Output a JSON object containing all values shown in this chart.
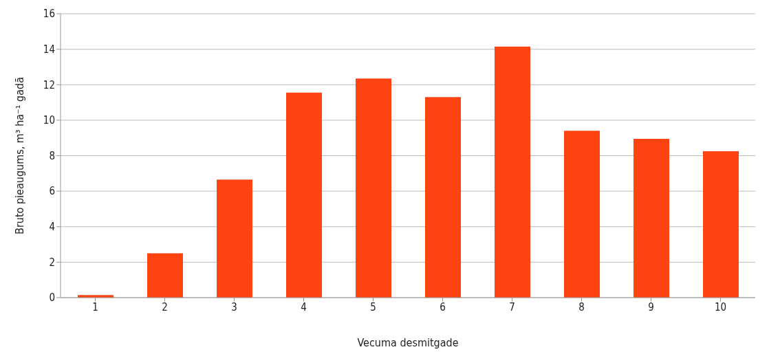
{
  "chart_data": {
    "type": "bar",
    "xlabel": "Vecuma desmitgade",
    "ylabel": "Bruto pieaugums, m³ ha⁻¹ gadā",
    "categories": [
      "1",
      "2",
      "3",
      "4",
      "5",
      "6",
      "7",
      "8",
      "9",
      "10"
    ],
    "values": [
      0.15,
      2.5,
      6.65,
      11.55,
      12.35,
      11.3,
      14.15,
      9.4,
      8.95,
      8.25
    ],
    "color": "#ff4412",
    "ylim": [
      0,
      16
    ],
    "yticks": [
      0,
      2,
      4,
      6,
      8,
      10,
      12,
      14,
      16
    ],
    "grid": "y"
  }
}
